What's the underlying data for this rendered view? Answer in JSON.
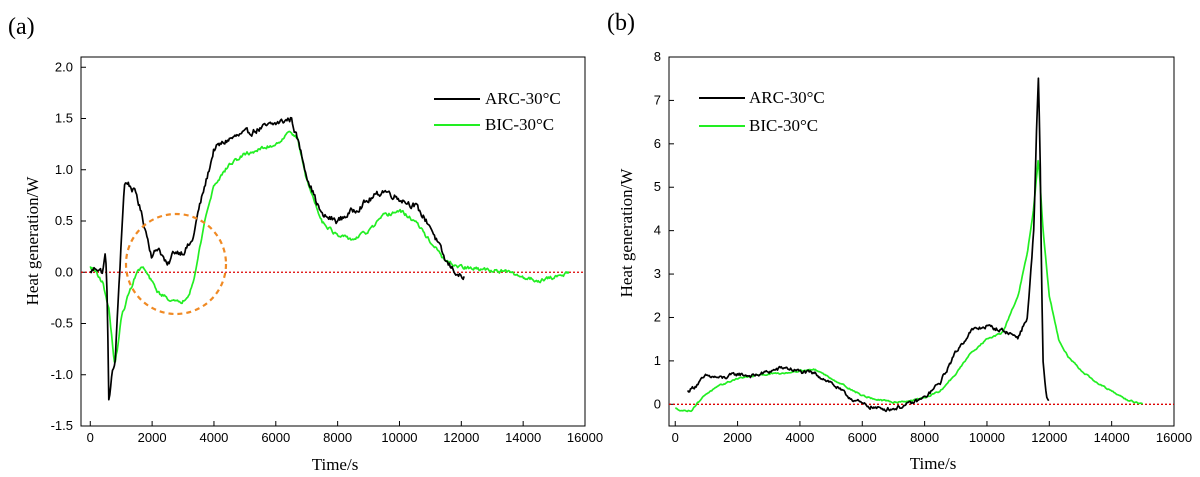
{
  "colors": {
    "arc": "#000000",
    "bic": "#22ee22",
    "zero_line": "#dd0000",
    "highlight_circle": "#f08a24"
  },
  "chart_data": [
    {
      "panel": "(a)",
      "type": "line",
      "xlabel": "Time/s",
      "ylabel": "Heat generation/W",
      "xlim": [
        -300,
        16000
      ],
      "ylim": [
        -1.5,
        2.1
      ],
      "xticks": [
        0,
        2000,
        4000,
        6000,
        8000,
        10000,
        12000,
        14000,
        16000
      ],
      "yticks": [
        -1.5,
        -1.0,
        -0.5,
        0.0,
        0.5,
        1.0,
        1.5,
        2.0
      ],
      "ytick_labels": [
        "-1.5",
        "-1.0",
        "-0.5",
        "0.0",
        "0.5",
        "1.0",
        "1.5",
        "2.0"
      ],
      "legend_position": "top-right",
      "annotations": [
        "dashed orange circle around dip near 2000-4000 s"
      ],
      "series": [
        {
          "name": "ARC-30°C",
          "color": "#000000",
          "noise": 0.06,
          "x": [
            0,
            200,
            400,
            500,
            550,
            600,
            700,
            800,
            1000,
            1100,
            1200,
            1500,
            1800,
            2000,
            2200,
            2500,
            2700,
            3000,
            3300,
            3500,
            3800,
            4000,
            4500,
            5000,
            5500,
            6000,
            6500,
            6700,
            7000,
            7300,
            7500,
            8000,
            8500,
            9000,
            9500,
            10000,
            10500,
            11000,
            11500,
            12000,
            12100
          ],
          "y": [
            0.0,
            0.05,
            0.0,
            0.2,
            -0.3,
            -1.25,
            -1.0,
            -0.9,
            0.3,
            0.85,
            0.88,
            0.75,
            0.4,
            0.15,
            0.25,
            0.05,
            0.2,
            0.2,
            0.3,
            0.6,
            0.95,
            1.2,
            1.3,
            1.35,
            1.4,
            1.45,
            1.5,
            1.3,
            0.95,
            0.7,
            0.55,
            0.5,
            0.6,
            0.7,
            0.8,
            0.72,
            0.65,
            0.45,
            0.1,
            -0.05,
            -0.05
          ]
        },
        {
          "name": "BIC-30°C",
          "color": "#22ee22",
          "noise": 0.035,
          "x": [
            0,
            200,
            400,
            600,
            750,
            800,
            900,
            1000,
            1200,
            1500,
            1700,
            1900,
            2000,
            2200,
            2500,
            2800,
            3000,
            3200,
            3400,
            3700,
            4000,
            4500,
            5000,
            5500,
            6000,
            6500,
            6700,
            7000,
            7300,
            7500,
            8000,
            8500,
            9000,
            9500,
            10000,
            10500,
            11000,
            11500,
            12000,
            12500,
            13000,
            13500,
            14000,
            14500,
            15000,
            15500
          ],
          "y": [
            0.05,
            0.0,
            -0.1,
            -0.35,
            -0.8,
            -0.9,
            -0.7,
            -0.45,
            -0.25,
            0.0,
            0.05,
            -0.05,
            -0.1,
            -0.2,
            -0.25,
            -0.3,
            -0.28,
            -0.2,
            0.0,
            0.5,
            0.85,
            1.05,
            1.15,
            1.2,
            1.25,
            1.38,
            1.3,
            0.9,
            0.65,
            0.5,
            0.35,
            0.32,
            0.4,
            0.55,
            0.6,
            0.5,
            0.3,
            0.1,
            0.05,
            0.03,
            0.02,
            0.0,
            -0.05,
            -0.08,
            -0.05,
            0.0
          ]
        }
      ]
    },
    {
      "panel": "(b)",
      "type": "line",
      "xlabel": "Time/s",
      "ylabel": "Heat generation/W",
      "xlim": [
        -200,
        16000
      ],
      "ylim": [
        -0.5,
        8.0
      ],
      "xticks": [
        0,
        2000,
        4000,
        6000,
        8000,
        10000,
        12000,
        14000,
        16000
      ],
      "yticks": [
        0,
        1,
        2,
        3,
        4,
        5,
        6,
        7,
        8
      ],
      "ytick_labels": [
        "0",
        "1",
        "2",
        "3",
        "4",
        "5",
        "6",
        "7",
        "8"
      ],
      "legend_position": "top-left",
      "series": [
        {
          "name": "ARC-30°C",
          "color": "#000000",
          "noise": 0.09,
          "x": [
            400,
            600,
            1000,
            1500,
            2000,
            2500,
            3000,
            3500,
            4000,
            4500,
            5000,
            5500,
            6000,
            6500,
            7000,
            7500,
            8000,
            8500,
            9000,
            9500,
            10000,
            10500,
            11000,
            11300,
            11500,
            11600,
            11650,
            11700,
            11750,
            11800,
            11900,
            12000
          ],
          "y": [
            0.3,
            0.4,
            0.65,
            0.6,
            0.7,
            0.65,
            0.75,
            0.85,
            0.75,
            0.7,
            0.5,
            0.2,
            0.0,
            -0.1,
            -0.1,
            0.0,
            0.15,
            0.5,
            1.2,
            1.7,
            1.8,
            1.7,
            1.55,
            2.0,
            4.0,
            6.5,
            7.5,
            6.0,
            3.0,
            1.0,
            0.2,
            0.05
          ]
        },
        {
          "name": "BIC-30°C",
          "color": "#22ee22",
          "noise": 0.035,
          "x": [
            0,
            300,
            500,
            800,
            1000,
            1500,
            2000,
            2500,
            3000,
            3500,
            4000,
            4500,
            5000,
            5500,
            6000,
            6500,
            7000,
            7500,
            8000,
            8500,
            9000,
            9500,
            10000,
            10500,
            11000,
            11300,
            11500,
            11650,
            11800,
            12000,
            12300,
            12600,
            13000,
            13500,
            14000,
            14500,
            15000
          ],
          "y": [
            -0.1,
            -0.15,
            -0.15,
            0.1,
            0.25,
            0.45,
            0.6,
            0.65,
            0.7,
            0.72,
            0.78,
            0.8,
            0.6,
            0.4,
            0.2,
            0.1,
            0.05,
            0.08,
            0.15,
            0.3,
            0.7,
            1.2,
            1.5,
            1.65,
            2.5,
            3.5,
            4.5,
            5.7,
            4.0,
            2.5,
            1.5,
            1.1,
            0.8,
            0.5,
            0.3,
            0.1,
            0.0
          ]
        }
      ]
    }
  ]
}
